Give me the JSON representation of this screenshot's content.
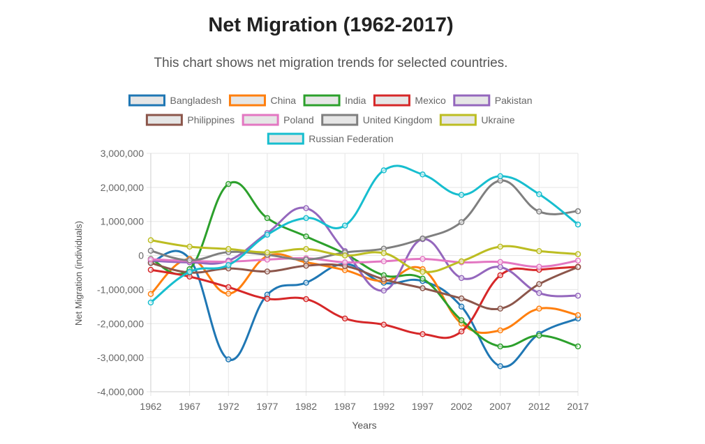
{
  "header": {
    "title": "Net Migration (1962-2017)",
    "subtitle": "This chart shows net migration trends for selected countries."
  },
  "chart_data": {
    "type": "line",
    "title": "Net Migration (1962-2017)",
    "xlabel": "Years",
    "ylabel": "Net Migration (individuals)",
    "ylim": [
      -4000000,
      3000000
    ],
    "yticks": [
      3000000,
      2000000,
      1000000,
      0,
      -1000000,
      -2000000,
      -3000000,
      -4000000
    ],
    "ytick_labels": [
      "3,000,000",
      "2,000,000",
      "1,000,000",
      "0",
      "-1,000,000",
      "-2,000,000",
      "-3,000,000",
      "-4,000,000"
    ],
    "categories": [
      "1962",
      "1967",
      "1972",
      "1977",
      "1982",
      "1987",
      "1992",
      "1997",
      "2002",
      "2007",
      "2012",
      "2017"
    ],
    "legend_position": "top-center",
    "grid": true,
    "series": [
      {
        "name": "Bangladesh",
        "color": "#1f77b4",
        "values": [
          -200000,
          -100000,
          -3050000,
          -1150000,
          -800000,
          -250000,
          -800000,
          -750000,
          -1500000,
          -3250000,
          -2300000,
          -1850000
        ]
      },
      {
        "name": "China",
        "color": "#ff7f0e",
        "values": [
          -1130000,
          -100000,
          -1120000,
          -20000,
          -200000,
          -430000,
          -750000,
          -400000,
          -2000000,
          -2200000,
          -1560000,
          -1750000
        ]
      },
      {
        "name": "India",
        "color": "#2ca02c",
        "values": [
          -100000,
          -400000,
          2100000,
          1100000,
          560000,
          50000,
          -580000,
          -680000,
          -1900000,
          -2670000,
          -2350000,
          -2670000
        ]
      },
      {
        "name": "Mexico",
        "color": "#d62728",
        "values": [
          -420000,
          -620000,
          -930000,
          -1270000,
          -1280000,
          -1850000,
          -2030000,
          -2310000,
          -2230000,
          -580000,
          -420000,
          -330000
        ]
      },
      {
        "name": "Pakistan",
        "color": "#9467bd",
        "values": [
          -150000,
          -200000,
          -150000,
          660000,
          1390000,
          130000,
          -1030000,
          480000,
          -660000,
          -340000,
          -1100000,
          -1180000
        ]
      },
      {
        "name": "Philippines",
        "color": "#8c564b",
        "values": [
          -220000,
          -500000,
          -380000,
          -470000,
          -300000,
          -310000,
          -700000,
          -960000,
          -1260000,
          -1560000,
          -840000,
          -340000
        ]
      },
      {
        "name": "Poland",
        "color": "#e377c2",
        "values": [
          -110000,
          -160000,
          -180000,
          -120000,
          -80000,
          -200000,
          -170000,
          -100000,
          -200000,
          -190000,
          -330000,
          -150000
        ]
      },
      {
        "name": "United Kingdom",
        "color": "#7f7f7f",
        "values": [
          140000,
          -140000,
          100000,
          20000,
          -120000,
          90000,
          200000,
          500000,
          980000,
          2200000,
          1290000,
          1300000
        ]
      },
      {
        "name": "Ukraine",
        "color": "#bcbd22",
        "values": [
          450000,
          260000,
          190000,
          90000,
          190000,
          0,
          70000,
          -480000,
          -170000,
          260000,
          130000,
          40000
        ]
      },
      {
        "name": "Russian Federation",
        "color": "#17becf",
        "values": [
          -1380000,
          -480000,
          -280000,
          610000,
          1100000,
          880000,
          2500000,
          2380000,
          1780000,
          2330000,
          1800000,
          910000
        ]
      }
    ]
  }
}
